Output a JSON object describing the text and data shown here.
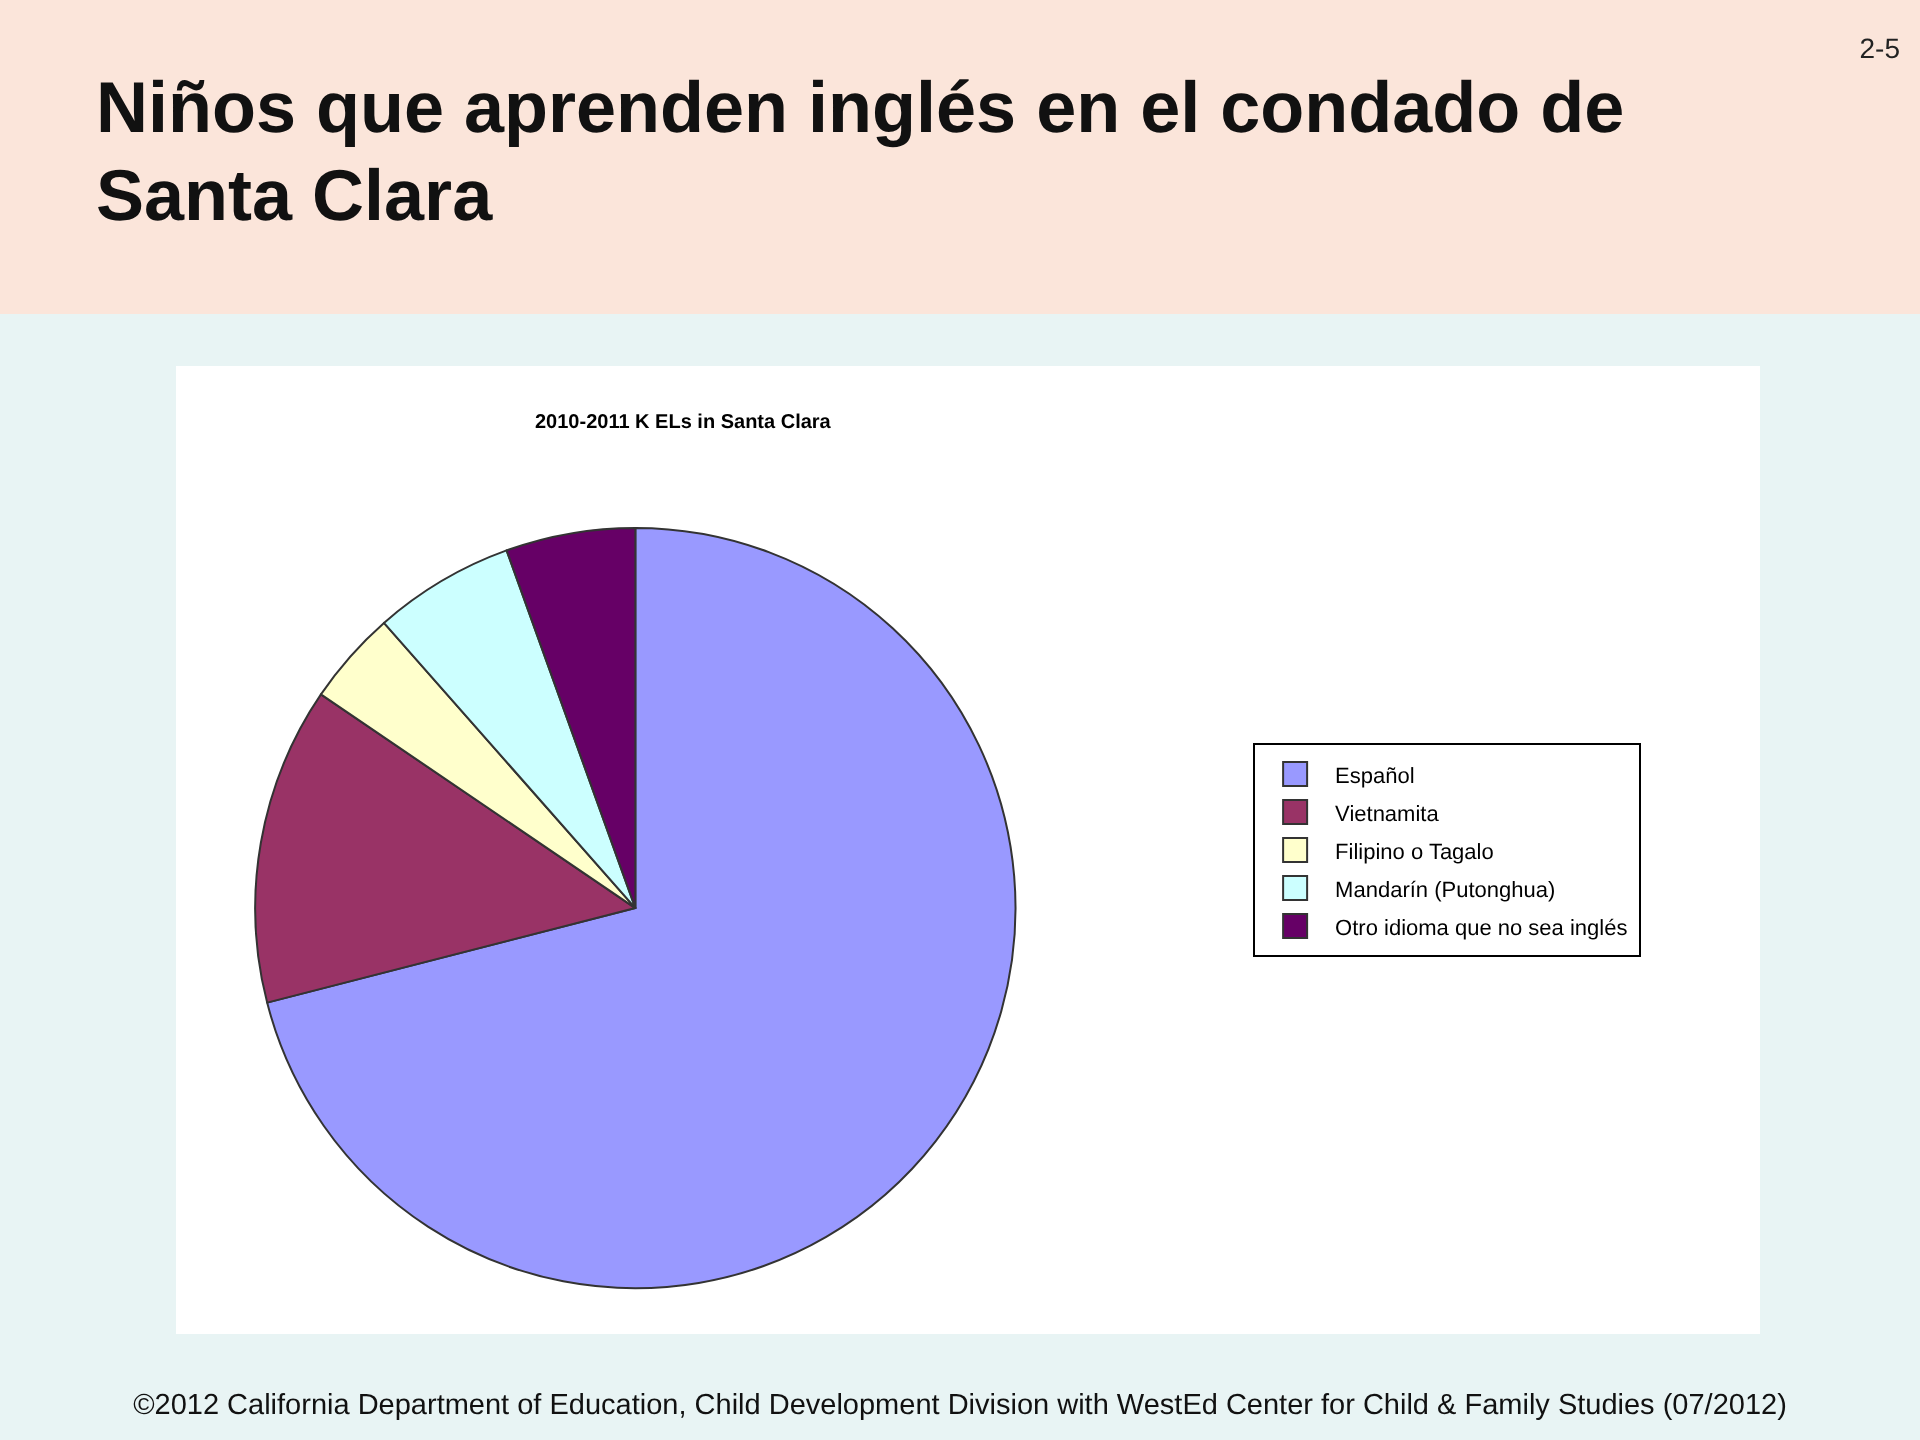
{
  "chart_data": {
    "type": "pie",
    "title": "Niños que aprenden inglés en el condado de Santa Clara",
    "subtitle": "2010-2011 K ELs in Santa Clara",
    "categories": [
      "Español",
      "Vietnamita",
      "Filipino o Tagalo",
      "Mandarín (Putonghua)",
      "Otro idioma que no sea inglés"
    ],
    "values": [
      71,
      13.5,
      4,
      6,
      5.5
    ],
    "colors": [
      "#9999ff",
      "#993366",
      "#ffffcc",
      "#ccffff",
      "#660066"
    ],
    "legend": "right",
    "annotations": [
      "2-5",
      "©2012 California Department of Education, Child Development Division with WestEd Center for Child & Family Studies (07/2012)"
    ]
  }
}
